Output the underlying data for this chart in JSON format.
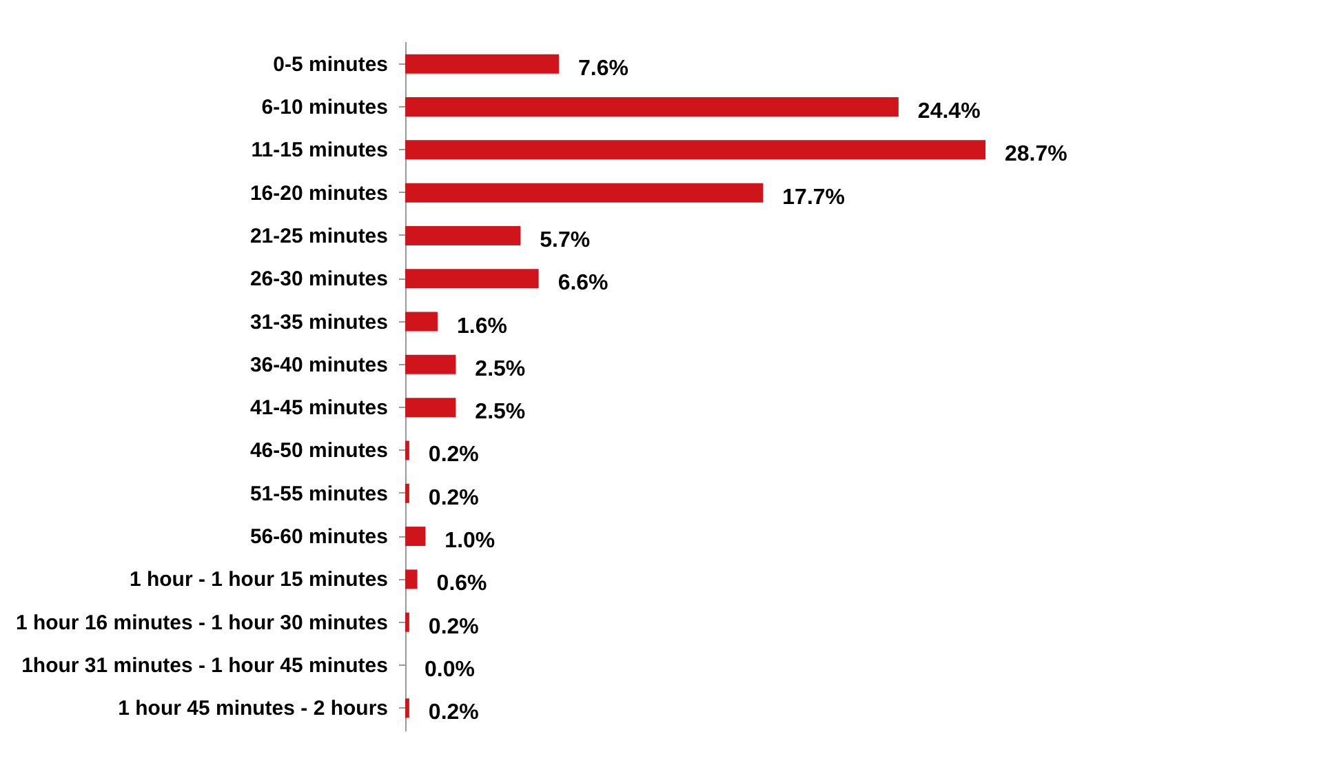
{
  "chart_data": {
    "type": "bar",
    "orientation": "horizontal",
    "categories": [
      "0-5 minutes",
      "6-10 minutes",
      "11-15 minutes",
      "16-20 minutes",
      "21-25 minutes",
      "26-30 minutes",
      "31-35 minutes",
      "36-40 minutes",
      "41-45 minutes",
      "46-50 minutes",
      "51-55 minutes",
      "56-60 minutes",
      "1 hour - 1 hour 15 minutes",
      "1 hour 16 minutes - 1 hour 30 minutes",
      "1hour 31 minutes - 1 hour 45 minutes",
      "1 hour 45 minutes - 2 hours"
    ],
    "values": [
      7.6,
      24.4,
      28.7,
      17.7,
      5.7,
      6.6,
      1.6,
      2.5,
      2.5,
      0.2,
      0.2,
      1.0,
      0.6,
      0.2,
      0.0,
      0.2
    ],
    "value_labels": [
      "7.6%",
      "24.4%",
      "28.7%",
      "17.7%",
      "5.7%",
      "6.6%",
      "1.6%",
      "2.5%",
      "2.5%",
      "0.2%",
      "0.2%",
      "1.0%",
      "0.6%",
      "0.2%",
      "0.0%",
      "0.2%"
    ],
    "color": "#d0141c",
    "grid": false
  }
}
